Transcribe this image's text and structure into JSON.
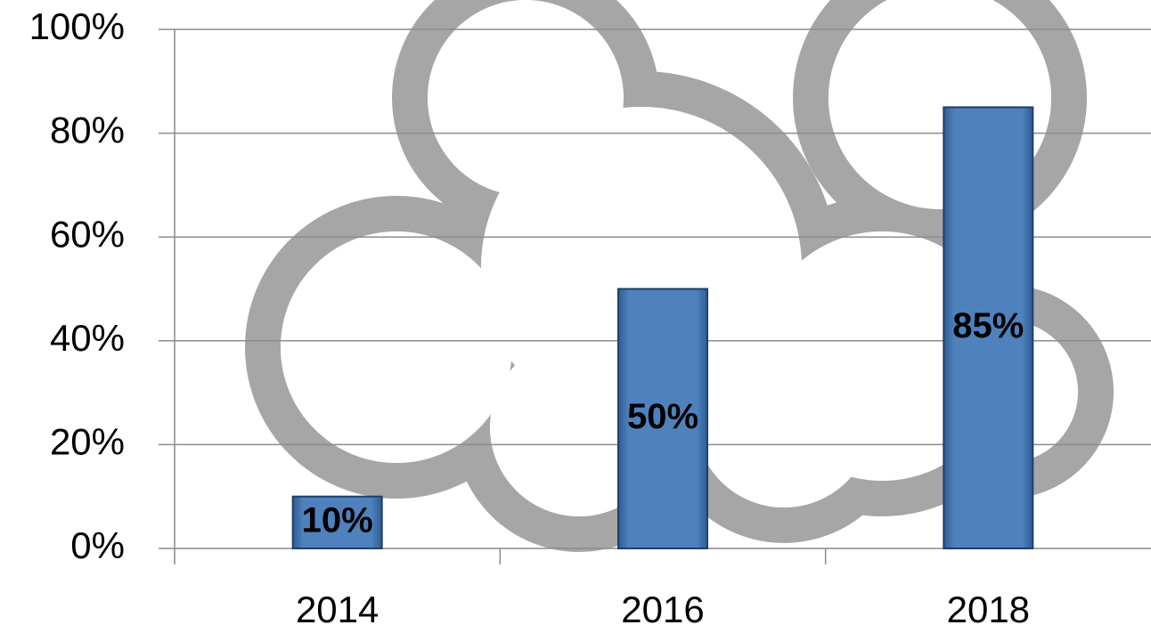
{
  "chart_data": {
    "type": "bar",
    "categories": [
      "2014",
      "2016",
      "2018"
    ],
    "values": [
      10,
      50,
      85
    ],
    "value_labels": [
      "10%",
      "50%",
      "85%"
    ],
    "color": "#4f81bd",
    "ylim": [
      0,
      100
    ],
    "yticks": [
      {
        "value": 0,
        "label": "0%"
      },
      {
        "value": 20,
        "label": "20%"
      },
      {
        "value": 40,
        "label": "40%"
      },
      {
        "value": 60,
        "label": "60%"
      },
      {
        "value": 80,
        "label": "80%"
      },
      {
        "value": 100,
        "label": "100%"
      }
    ],
    "grid": true
  }
}
